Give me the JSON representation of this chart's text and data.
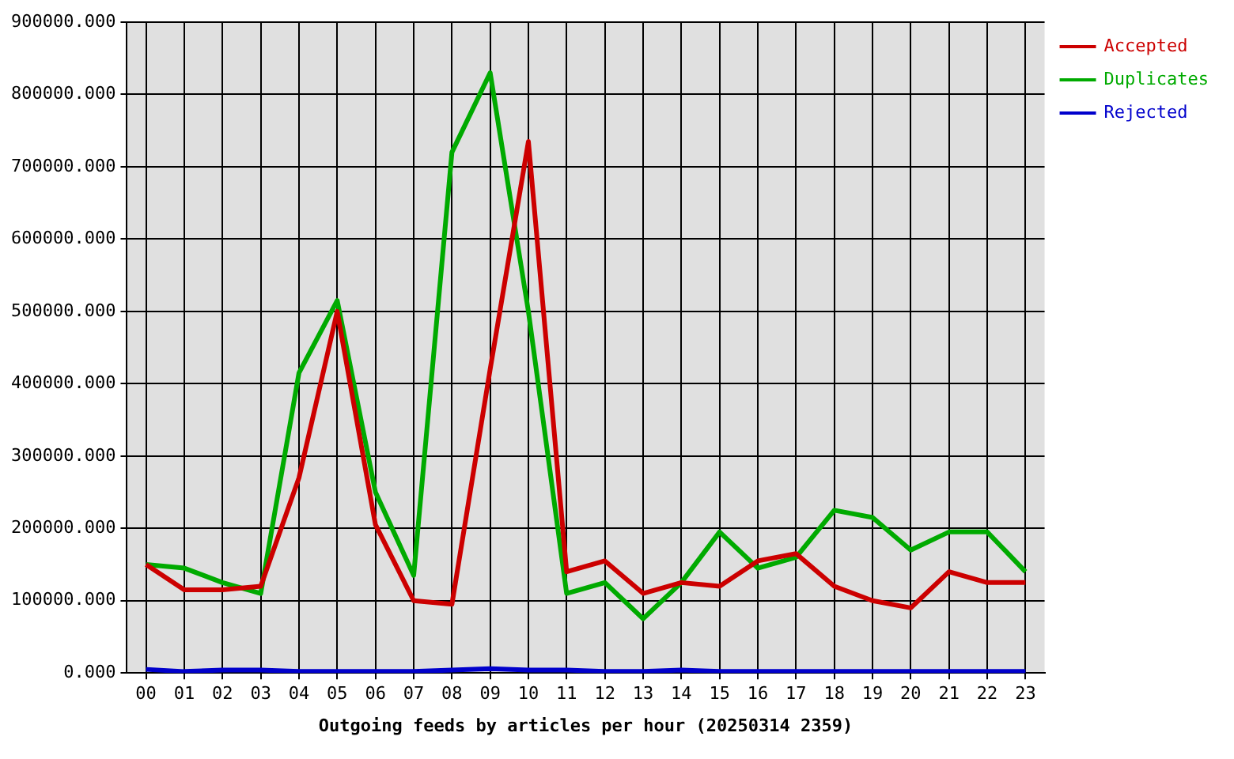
{
  "chart_data": {
    "type": "line",
    "xlabel": "Outgoing feeds by articles per hour (20250314 2359)",
    "categories": [
      "00",
      "01",
      "02",
      "03",
      "04",
      "05",
      "06",
      "07",
      "08",
      "09",
      "10",
      "11",
      "12",
      "13",
      "14",
      "15",
      "16",
      "17",
      "18",
      "19",
      "20",
      "21",
      "22",
      "23"
    ],
    "series": [
      {
        "name": "Accepted",
        "color": "#cc0000",
        "values": [
          150000,
          115000,
          115000,
          120000,
          270000,
          500000,
          205000,
          100000,
          95000,
          420000,
          735000,
          140000,
          155000,
          110000,
          125000,
          120000,
          155000,
          165000,
          120000,
          100000,
          90000,
          140000,
          125000,
          125000
        ]
      },
      {
        "name": "Duplicates",
        "color": "#00aa00",
        "values": [
          150000,
          145000,
          125000,
          110000,
          415000,
          515000,
          250000,
          135000,
          720000,
          830000,
          500000,
          110000,
          125000,
          75000,
          125000,
          195000,
          145000,
          160000,
          225000,
          215000,
          170000,
          195000,
          195000,
          140000
        ]
      },
      {
        "name": "Rejected",
        "color": "#0000cc",
        "values": [
          5000,
          2000,
          4000,
          4000,
          2000,
          2000,
          2000,
          2000,
          4000,
          6000,
          4000,
          4000,
          2000,
          2000,
          4000,
          2000,
          2000,
          2000,
          2000,
          2000,
          2000,
          2000,
          2000,
          2000
        ]
      }
    ],
    "ylim": [
      0,
      900000
    ],
    "yticks": [
      {
        "value": 0,
        "label": "0.000"
      },
      {
        "value": 100000,
        "label": "100000.000"
      },
      {
        "value": 200000,
        "label": "200000.000"
      },
      {
        "value": 300000,
        "label": "300000.000"
      },
      {
        "value": 400000,
        "label": "400000.000"
      },
      {
        "value": 500000,
        "label": "500000.000"
      },
      {
        "value": 600000,
        "label": "600000.000"
      },
      {
        "value": 700000,
        "label": "700000.000"
      },
      {
        "value": 800000,
        "label": "800000.000"
      },
      {
        "value": 900000,
        "label": "900000.000"
      }
    ],
    "grid": true,
    "legend": "right",
    "marker": "none",
    "line_style": "solid"
  }
}
